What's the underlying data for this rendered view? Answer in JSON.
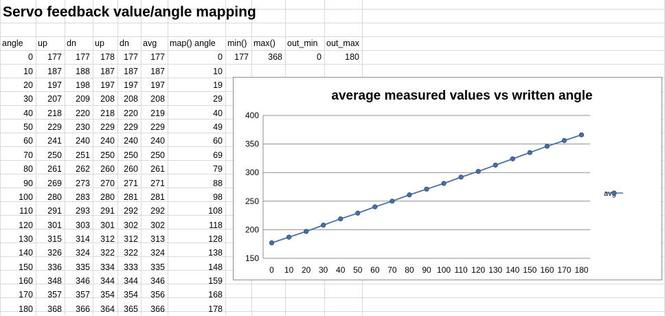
{
  "title": "Servo feedback value/angle mapping",
  "headers": [
    "angle",
    "up",
    "dn",
    "up",
    "dn",
    "avg",
    "map() angle",
    "min()",
    "max()",
    "out_min",
    "out_max"
  ],
  "params": {
    "min": 177,
    "max": 368,
    "out_min": 0,
    "out_max": 180
  },
  "rows": [
    [
      0,
      177,
      177,
      178,
      177,
      177,
      0
    ],
    [
      10,
      187,
      188,
      187,
      187,
      187,
      10
    ],
    [
      20,
      197,
      198,
      197,
      197,
      197,
      19
    ],
    [
      30,
      207,
      209,
      208,
      208,
      208,
      29
    ],
    [
      40,
      218,
      220,
      218,
      220,
      219,
      40
    ],
    [
      50,
      229,
      230,
      229,
      229,
      229,
      49
    ],
    [
      60,
      241,
      240,
      240,
      240,
      240,
      60
    ],
    [
      70,
      250,
      251,
      250,
      250,
      250,
      69
    ],
    [
      80,
      261,
      262,
      260,
      260,
      261,
      79
    ],
    [
      90,
      269,
      273,
      270,
      271,
      271,
      88
    ],
    [
      100,
      280,
      283,
      280,
      281,
      281,
      98
    ],
    [
      110,
      291,
      293,
      291,
      292,
      292,
      108
    ],
    [
      120,
      301,
      303,
      301,
      302,
      302,
      118
    ],
    [
      130,
      315,
      314,
      312,
      312,
      313,
      128
    ],
    [
      140,
      326,
      324,
      322,
      322,
      324,
      138
    ],
    [
      150,
      336,
      335,
      334,
      333,
      335,
      148
    ],
    [
      160,
      348,
      346,
      344,
      344,
      346,
      159
    ],
    [
      170,
      357,
      357,
      354,
      354,
      356,
      168
    ],
    [
      180,
      368,
      366,
      364,
      365,
      366,
      178
    ]
  ],
  "chart_data": {
    "type": "line",
    "title": "average measured values vs written angle",
    "x": [
      0,
      10,
      20,
      30,
      40,
      50,
      60,
      70,
      80,
      90,
      100,
      110,
      120,
      130,
      140,
      150,
      160,
      170,
      180
    ],
    "series": [
      {
        "name": "avg",
        "color": "#4a6fa5",
        "values": [
          177,
          187,
          197,
          208,
          219,
          229,
          240,
          250,
          261,
          271,
          281,
          292,
          302,
          313,
          324,
          335,
          346,
          356,
          366
        ]
      }
    ],
    "ylim": [
      150,
      400
    ],
    "yticks": [
      150,
      200,
      250,
      300,
      350,
      400
    ],
    "grid": "horizontal",
    "legend": "right"
  }
}
